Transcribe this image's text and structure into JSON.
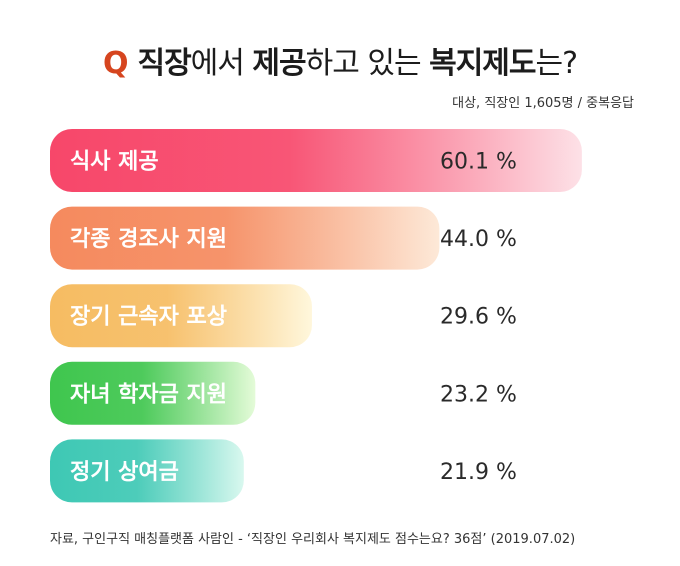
{
  "header": {
    "q_mark": "Q",
    "title_parts": [
      "직장",
      "에서 ",
      "제공",
      "하고 있는 ",
      "복지제도",
      "는?"
    ],
    "subtitle": "대상, 직장인 1,605명 / 중복응답"
  },
  "footer": {
    "source": "자료, 구인구직 매칭플랫폼 사람인 - ‘직장인 우리회사 복지제도 점수는요? 36점’ (2019.07.02)"
  },
  "chart_data": {
    "type": "bar",
    "orientation": "horizontal",
    "title": "직장에서 제공하고 있는 복지제도는?",
    "categories": [
      "식사 제공",
      "각종 경조사 지원",
      "장기 근속자 포상",
      "자녀 학자금 지원",
      "정기 상여금"
    ],
    "values": [
      60.1,
      44.0,
      29.6,
      23.2,
      21.9
    ],
    "value_labels": [
      "60.1 %",
      "44.0 %",
      "29.6 %",
      "23.2 %",
      "21.9 %"
    ],
    "unit": "%",
    "grid": false,
    "legend": "none",
    "colors": [
      [
        "#f7476a",
        "#fde1e7"
      ],
      [
        "#f58a5e",
        "#fde9d8"
      ],
      [
        "#f6bc62",
        "#fff7dc"
      ],
      [
        "#3fc64e",
        "#e4fbd8"
      ],
      [
        "#3ec8b4",
        "#d9f8ef"
      ]
    ]
  }
}
